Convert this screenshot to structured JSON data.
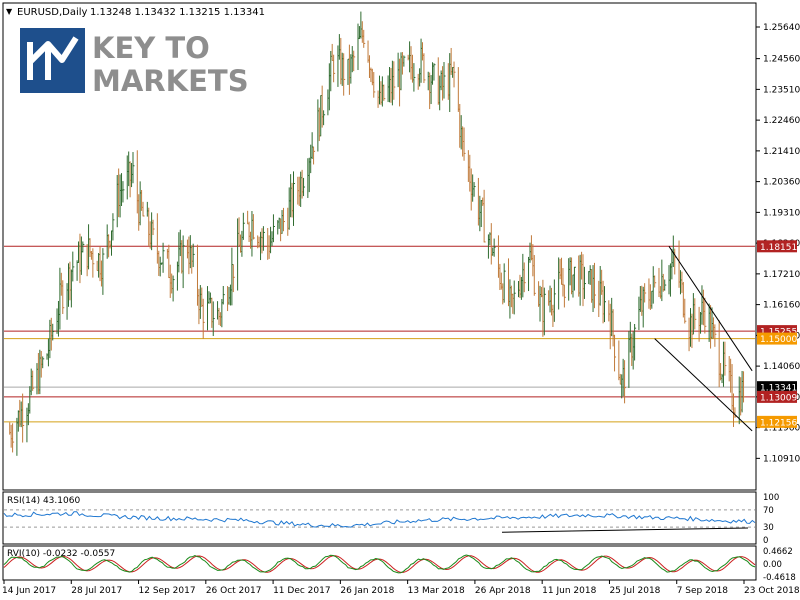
{
  "header": {
    "symbol": "EURUSD,Daily",
    "ohlc": "1.13248 1.13432 1.13215 1.13341"
  },
  "logo": {
    "line1": "KEY TO",
    "line2": "MARKETS",
    "color": "#1e4f8c"
  },
  "colors": {
    "bull": "#2f6b2f",
    "bear": "#c07a3a",
    "red_line": "#b22222",
    "yellow_line": "#d4a017",
    "trend": "#000000",
    "current_line": "#a9a9a9",
    "rsi": "#1f77d0",
    "rvi_main": "#1a8a1a",
    "rvi_signal": "#cc2222"
  },
  "chart_data": [
    {
      "type": "candlestick",
      "title": "EURUSD,Daily",
      "ylim": [
        1.1,
        1.2564
      ],
      "y_ticks": [
        "1.25640",
        "1.24560",
        "1.23510",
        "1.22460",
        "1.21410",
        "1.20360",
        "1.19310",
        "1.18260",
        "1.17210",
        "1.16160",
        "1.15110",
        "1.14060",
        "1.13010",
        "1.11960",
        "1.10910"
      ],
      "x_ticks": [
        "14 Jun 2017",
        "28 Jul 2017",
        "12 Sep 2017",
        "26 Oct 2017",
        "11 Dec 2017",
        "26 Jan 2018",
        "13 Mar 2018",
        "26 Apr 2018",
        "11 Jun 2018",
        "25 Jul 2018",
        "7 Sep 2018",
        "23 Oct 2018"
      ],
      "close_path": [
        [
          "14 Jun 2017",
          1.118
        ],
        [
          "28 Jun 2017",
          1.13
        ],
        [
          "10 Jul 2017",
          1.145
        ],
        [
          "20 Jul 2017",
          1.165
        ],
        [
          "28 Jul 2017",
          1.175
        ],
        [
          "8 Aug 2017",
          1.18
        ],
        [
          "18 Aug 2017",
          1.176
        ],
        [
          "29 Aug 2017",
          1.2
        ],
        [
          "8 Sep 2017",
          1.206
        ],
        [
          "12 Sep 2017",
          1.195
        ],
        [
          "25 Sep 2017",
          1.18
        ],
        [
          "6 Oct 2017",
          1.172
        ],
        [
          "16 Oct 2017",
          1.182
        ],
        [
          "26 Oct 2017",
          1.16
        ],
        [
          "7 Nov 2017",
          1.158
        ],
        [
          "20 Nov 2017",
          1.18
        ],
        [
          "30 Nov 2017",
          1.19
        ],
        [
          "11 Dec 2017",
          1.182
        ],
        [
          "22 Dec 2017",
          1.19
        ],
        [
          "4 Jan 2018",
          1.205
        ],
        [
          "16 Jan 2018",
          1.225
        ],
        [
          "26 Jan 2018",
          1.245
        ],
        [
          "5 Feb 2018",
          1.24
        ],
        [
          "16 Feb 2018",
          1.255
        ],
        [
          "27 Feb 2018",
          1.23
        ],
        [
          "13 Mar 2018",
          1.24
        ],
        [
          "27 Mar 2018",
          1.245
        ],
        [
          "10 Apr 2018",
          1.235
        ],
        [
          "20 Apr 2018",
          1.24
        ],
        [
          "26 Apr 2018",
          1.215
        ],
        [
          "7 May 2018",
          1.195
        ],
        [
          "18 May 2018",
          1.178
        ],
        [
          "30 May 2018",
          1.16
        ],
        [
          "11 Jun 2018",
          1.18
        ],
        [
          "20 Jun 2018",
          1.16
        ],
        [
          "3 Jul 2018",
          1.168
        ],
        [
          "13 Jul 2018",
          1.172
        ],
        [
          "25 Jul 2018",
          1.168
        ],
        [
          "6 Aug 2018",
          1.16
        ],
        [
          "15 Aug 2018",
          1.134
        ],
        [
          "28 Aug 2018",
          1.16
        ],
        [
          "7 Sep 2018",
          1.168
        ],
        [
          "21 Sep 2018",
          1.176
        ],
        [
          "1 Oct 2018",
          1.155
        ],
        [
          "12 Oct 2018",
          1.16
        ],
        [
          "23 Oct 2018",
          1.142
        ],
        [
          "2 Nov 2018",
          1.128
        ],
        [
          "8 Nov 2018",
          1.133
        ]
      ],
      "levels": [
        {
          "label": "1.18151",
          "value": 1.18151,
          "style": "red"
        },
        {
          "label": "1.15255",
          "value": 1.15255,
          "style": "red"
        },
        {
          "label": "1.15000",
          "value": 1.15,
          "style": "yellow"
        },
        {
          "label": "1.13341",
          "value": 1.13341,
          "style": "current"
        },
        {
          "label": "1.13009",
          "value": 1.13009,
          "style": "red"
        },
        {
          "label": "1.12156",
          "value": 1.12156,
          "style": "yellow"
        }
      ],
      "channel": [
        {
          "from": [
            "17 Sep 2018",
            1.18151
          ],
          "to": [
            "14 Nov 2018",
            1.139
          ]
        },
        {
          "from": [
            "7 Sep 2018",
            1.15
          ],
          "to": [
            "14 Nov 2018",
            1.1185
          ]
        }
      ]
    },
    {
      "type": "line",
      "title": "RSI(14) 43.1060",
      "ylim": [
        0,
        100
      ],
      "y_ticks": [
        "100",
        "70",
        "30",
        "0"
      ],
      "levels": [
        70,
        30
      ],
      "values": [
        58,
        60,
        62,
        56,
        52,
        50,
        48,
        46,
        40,
        35,
        33,
        38,
        45,
        48,
        50,
        52,
        55,
        58,
        56,
        52,
        50,
        45,
        43
      ]
    },
    {
      "type": "line",
      "title": "RVI(10) -0.0232 -0.0557",
      "ylim": [
        -0.4618,
        0.4662
      ],
      "y_ticks": [
        "0.4662",
        "0.00",
        "-0.4618"
      ]
    }
  ]
}
